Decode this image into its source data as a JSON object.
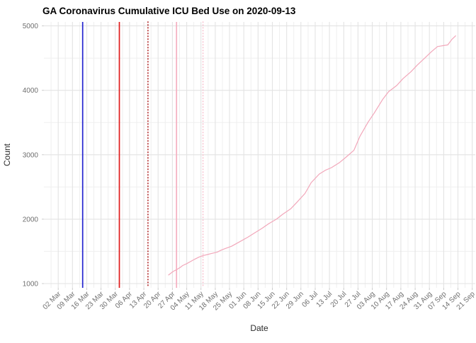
{
  "chart_data": {
    "type": "line",
    "title": "GA Coronavirus Cumulative ICU Bed Use on 2020-09-13",
    "xlabel": "Date",
    "ylabel": "Count",
    "x_epoch": "2020-03-02",
    "x_tick_labels": [
      "02 Mar",
      "09 Mar",
      "16 Mar",
      "23 Mar",
      "30 Mar",
      "06 Apr",
      "13 Apr",
      "20 Apr",
      "27 Apr",
      "04 May",
      "11 May",
      "18 May",
      "25 May",
      "01 Jun",
      "08 Jun",
      "15 Jun",
      "22 Jun",
      "29 Jun",
      "06 Jul",
      "13 Jul",
      "20 Jul",
      "27 Jul",
      "03 Aug",
      "10 Aug",
      "17 Aug",
      "24 Aug",
      "31 Aug",
      "07 Sep",
      "14 Sep",
      "21 Sep"
    ],
    "x_minor_days": [
      -3.5,
      3.5,
      10.5,
      17.5,
      24.5,
      31.5,
      38.5,
      45.5,
      52.5,
      59.5,
      66.5,
      73.5,
      80.5,
      87.5,
      94.5,
      101.5,
      108.5,
      115.5,
      122.5,
      129.5,
      136.5,
      143.5,
      150.5,
      157.5,
      164.5,
      171.5,
      178.5,
      185.5,
      192.5,
      199.5
    ],
    "xlim_days": [
      -7,
      204.5
    ],
    "y_ticks": [
      1000,
      2000,
      3000,
      4000,
      5000
    ],
    "y_minor": [
      1500,
      2500,
      3500,
      4500
    ],
    "ylim": [
      934,
      5062
    ],
    "grid": {
      "major_color": "#e3e3e3",
      "minor_color": "#efefef",
      "tick_color": "#cccccc"
    },
    "legend": "none",
    "annotations": {
      "vlines": [
        {
          "id": "blue-solid",
          "date": "2020-03-14",
          "color": "#2424cf",
          "style": "solid",
          "width": 1.7
        },
        {
          "id": "red-solid",
          "date": "2020-04-01",
          "color": "#df1b1b",
          "style": "solid",
          "width": 1.7
        },
        {
          "id": "red-dotted",
          "date": "2020-04-15",
          "color": "#b42e2e",
          "style": "dotted",
          "width": 1.7
        },
        {
          "id": "pink-solid",
          "date": "2020-04-29",
          "color": "#f5afc0",
          "style": "solid",
          "width": 1.7
        },
        {
          "id": "pink-dotted",
          "date": "2020-05-12",
          "color": "#f7bcca",
          "style": "dotted",
          "width": 1.5
        }
      ]
    },
    "series": [
      {
        "id": "cumulative-icu-bed-use",
        "color": "#f2a7ba",
        "points": [
          [
            "2020-04-25",
            1130
          ],
          [
            "2020-04-26",
            1155
          ],
          [
            "2020-04-27",
            1180
          ],
          [
            "2020-04-28",
            1200
          ],
          [
            "2020-04-29",
            1215
          ],
          [
            "2020-05-01",
            1255
          ],
          [
            "2020-05-02",
            1280
          ],
          [
            "2020-05-04",
            1310
          ],
          [
            "2020-05-06",
            1345
          ],
          [
            "2020-05-08",
            1380
          ],
          [
            "2020-05-10",
            1410
          ],
          [
            "2020-05-12",
            1435
          ],
          [
            "2020-05-14",
            1450
          ],
          [
            "2020-05-16",
            1465
          ],
          [
            "2020-05-19",
            1490
          ],
          [
            "2020-05-21",
            1520
          ],
          [
            "2020-05-23",
            1545
          ],
          [
            "2020-05-26",
            1580
          ],
          [
            "2020-05-30",
            1650
          ],
          [
            "2020-06-03",
            1720
          ],
          [
            "2020-06-06",
            1780
          ],
          [
            "2020-06-10",
            1860
          ],
          [
            "2020-06-13",
            1925
          ],
          [
            "2020-06-17",
            2000
          ],
          [
            "2020-06-20",
            2075
          ],
          [
            "2020-06-24",
            2160
          ],
          [
            "2020-06-27",
            2260
          ],
          [
            "2020-07-01",
            2400
          ],
          [
            "2020-07-04",
            2565
          ],
          [
            "2020-07-08",
            2700
          ],
          [
            "2020-07-11",
            2760
          ],
          [
            "2020-07-14",
            2800
          ],
          [
            "2020-07-18",
            2880
          ],
          [
            "2020-07-21",
            2960
          ],
          [
            "2020-07-25",
            3070
          ],
          [
            "2020-07-28",
            3290
          ],
          [
            "2020-08-01",
            3510
          ],
          [
            "2020-08-04",
            3650
          ],
          [
            "2020-08-08",
            3855
          ],
          [
            "2020-08-11",
            3980
          ],
          [
            "2020-08-15",
            4075
          ],
          [
            "2020-08-18",
            4180
          ],
          [
            "2020-08-22",
            4290
          ],
          [
            "2020-08-25",
            4390
          ],
          [
            "2020-08-29",
            4510
          ],
          [
            "2020-09-01",
            4600
          ],
          [
            "2020-09-04",
            4680
          ],
          [
            "2020-09-07",
            4695
          ],
          [
            "2020-09-09",
            4705
          ],
          [
            "2020-09-11",
            4790
          ],
          [
            "2020-09-13",
            4850
          ]
        ]
      }
    ]
  }
}
